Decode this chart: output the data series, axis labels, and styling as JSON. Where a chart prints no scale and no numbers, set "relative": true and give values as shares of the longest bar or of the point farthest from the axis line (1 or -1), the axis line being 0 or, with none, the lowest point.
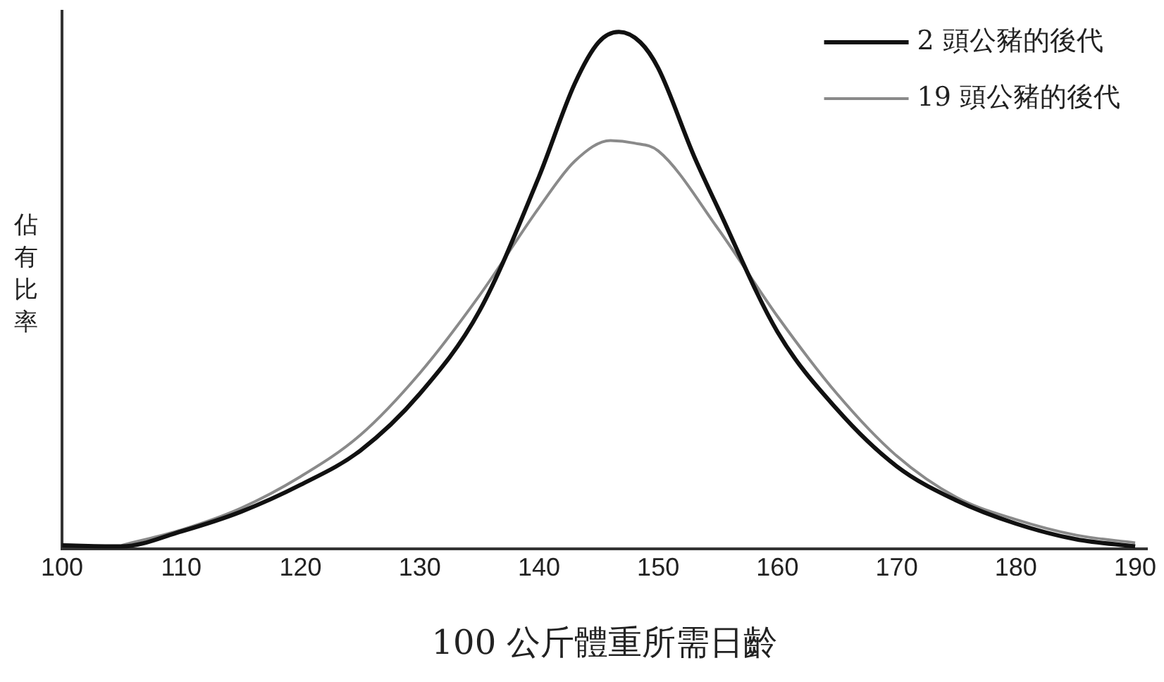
{
  "chart_data": {
    "type": "line",
    "xlabel": "100 公斤體重所需日齡",
    "ylabel": "佔有比率",
    "relative": true,
    "xlim": [
      100,
      191
    ],
    "xticks": [
      100,
      110,
      120,
      130,
      140,
      150,
      160,
      170,
      180,
      190
    ],
    "grid": false,
    "legend": "top right",
    "marker": "none",
    "line_style": "solid",
    "series": [
      {
        "name": "2 頭公豬的後代",
        "color": "#111111",
        "x": [
          100,
          105,
          110,
          115,
          120,
          125,
          130,
          135,
          140,
          143,
          145,
          146.7,
          148.5,
          150,
          153,
          155,
          160,
          165,
          170,
          175,
          180,
          185,
          190
        ],
        "values": [
          0.007,
          0.005,
          0.034,
          0.072,
          0.124,
          0.19,
          0.3,
          0.46,
          0.72,
          0.9,
          0.98,
          1,
          0.98,
          0.93,
          0.76,
          0.66,
          0.42,
          0.27,
          0.16,
          0.094,
          0.049,
          0.019,
          0.005
        ]
      },
      {
        "name": "19 頭公豬的後代",
        "color": "#8a8a8a",
        "x": [
          105,
          110,
          115,
          120,
          125,
          130,
          135,
          140,
          143,
          146,
          148,
          150,
          155,
          160,
          165,
          170,
          175,
          180,
          185,
          190
        ],
        "values": [
          0.007,
          0.037,
          0.079,
          0.14,
          0.22,
          0.34,
          0.49,
          0.66,
          0.75,
          0.79,
          0.785,
          0.77,
          0.62,
          0.45,
          0.3,
          0.18,
          0.1,
          0.057,
          0.027,
          0.012
        ]
      }
    ]
  }
}
